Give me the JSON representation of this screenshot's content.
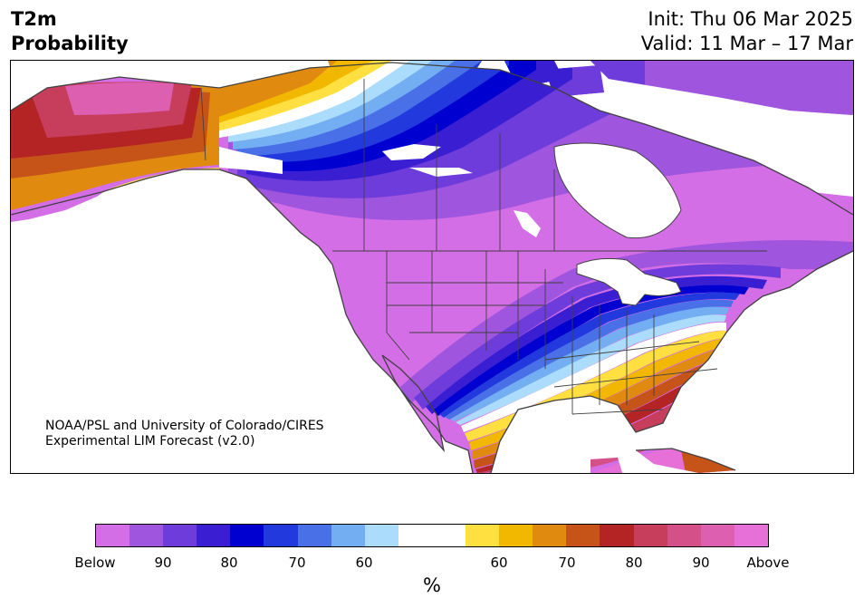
{
  "header": {
    "title_line1": "T2m",
    "title_line2": "Probability",
    "init": "Init: Thu 06 Mar 2025",
    "valid": "Valid: 11 Mar – 17 Mar"
  },
  "credit": {
    "line1": "NOAA/PSL and University of Colorado/CIRES",
    "line2": "Experimental LIM Forecast (v2.0)"
  },
  "colorbar": {
    "unit": "%",
    "ticks": [
      "Below",
      "90",
      "80",
      "70",
      "60",
      "60",
      "70",
      "80",
      "90",
      "Above"
    ],
    "below_colors": [
      "#d46ee6",
      "#9f55dd",
      "#6e3cdb",
      "#3a1ed2",
      "#0000d0",
      "#2239dd",
      "#4a70e8",
      "#74aef2",
      "#acdcfb"
    ],
    "neutral_color": "#ffffff",
    "above_colors": [
      "#ffe040",
      "#f2b800",
      "#e08a10",
      "#c65418",
      "#b52424",
      "#c63e5c",
      "#d35088",
      "#dc5fb0",
      "#e66fd8"
    ]
  },
  "map": {
    "land_color_default": "#d46ee6",
    "water_color": "#ffffff",
    "boundary_color": "#404040"
  }
}
